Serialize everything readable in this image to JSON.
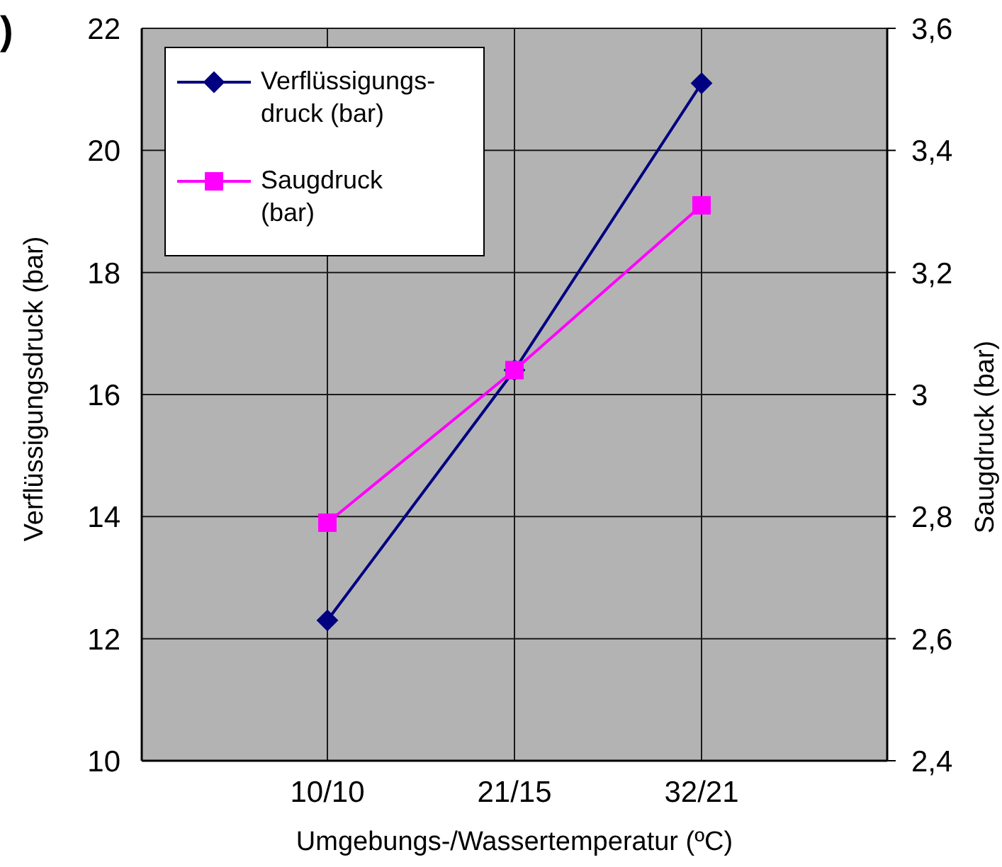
{
  "chart_data": {
    "type": "line",
    "xlabel": "Umgebungs-/Wassertemperatur (ºC)",
    "ylabel": "Verflüssigungsdruck (bar)",
    "y2label": "Saugdruck (bar)",
    "annotations": [
      ")"
    ],
    "categories": [
      "10/10",
      "21/15",
      "32/21"
    ],
    "series": [
      {
        "name": "Verflüssigungs-druck (bar)",
        "color": "#000080",
        "values": [
          12.3,
          16.4,
          21.1
        ],
        "marker": "diamond"
      },
      {
        "name": "Saugdruck (bar)",
        "color": "#ff00ff",
        "values": [
          2.79,
          3.04,
          3.31
        ],
        "axis": "y2",
        "marker": "square"
      }
    ],
    "ylim": [
      10,
      22
    ],
    "yticks": [
      10,
      12,
      14,
      16,
      18,
      20,
      22
    ],
    "y2lim": [
      2.4,
      3.6
    ],
    "y2ticks": [
      {
        "value": 2.4,
        "label": "2,4"
      },
      {
        "value": 2.6,
        "label": "2,6"
      },
      {
        "value": 2.8,
        "label": "2,8"
      },
      3,
      {
        "value": 3.2,
        "label": "3,2"
      },
      {
        "value": 3.4,
        "label": "3,4"
      },
      {
        "value": 3.6,
        "label": "3,6"
      }
    ],
    "grid": true,
    "legend": "top left",
    "line_style": "solid"
  }
}
